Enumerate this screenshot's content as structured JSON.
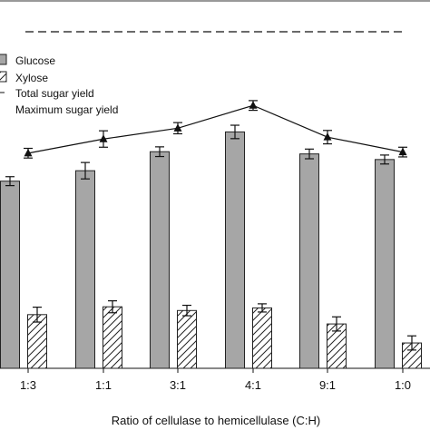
{
  "chart_data": {
    "type": "bar",
    "xlabel": "Ratio of cellulase to hemicellulase (C:H)",
    "categories": [
      "1:3",
      "1:1",
      "3:1",
      "4:1",
      "9:1",
      "1:0"
    ],
    "ylim": [
      0,
      100
    ],
    "grid": false,
    "legend_position": "top-left",
    "series": [
      {
        "name": "Glucose",
        "kind": "bar",
        "fill": "#a6a6a6",
        "values": [
          50.2,
          53.0,
          58.1,
          63.4,
          57.5,
          56.0
        ],
        "errors": [
          1.2,
          2.2,
          1.3,
          1.8,
          1.3,
          1.2
        ]
      },
      {
        "name": "Xylose",
        "kind": "bar",
        "pattern": "hatch",
        "values": [
          14.4,
          16.5,
          15.5,
          16.2,
          11.9,
          6.8
        ],
        "errors": [
          2.0,
          1.6,
          1.4,
          1.1,
          1.9,
          1.9
        ]
      },
      {
        "name": "Total sugar yield",
        "kind": "line",
        "marker": "triangle",
        "values": [
          57.7,
          61.5,
          64.4,
          70.5,
          62.0,
          58.0
        ],
        "errors": [
          1.3,
          2.2,
          1.5,
          1.3,
          1.8,
          1.3
        ]
      }
    ],
    "legend_extra": "Maximum sugar yield"
  }
}
